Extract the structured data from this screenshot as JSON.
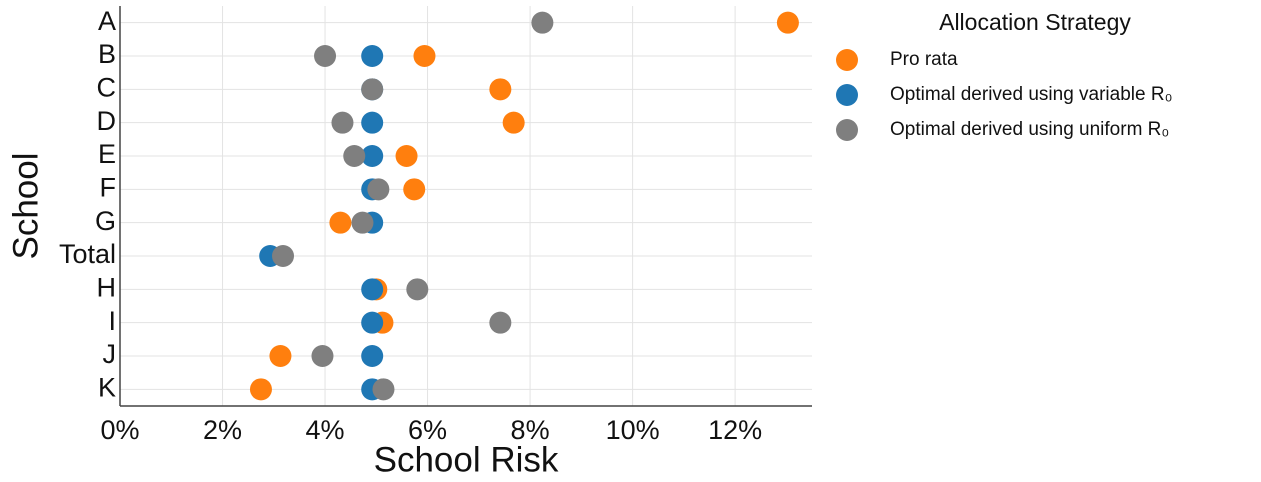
{
  "chart_data": {
    "type": "dot",
    "x_label": "School Risk",
    "y_label": "School",
    "categories": [
      "A",
      "B",
      "C",
      "D",
      "E",
      "F",
      "G",
      "Total",
      "H",
      "I",
      "J",
      "K"
    ],
    "legend_title": "Allocation Strategy",
    "series": [
      {
        "name": "Pro rata",
        "color": "#ff7f0e",
        "values": [
          13.03,
          5.94,
          7.42,
          7.68,
          5.59,
          5.74,
          4.3,
          null,
          5.0,
          5.12,
          3.13,
          2.75
        ]
      },
      {
        "name": "Optimal derived using variable R₀",
        "color": "#1f77b4",
        "values": [
          null,
          4.92,
          4.92,
          4.92,
          4.92,
          4.92,
          4.92,
          2.93,
          4.92,
          4.92,
          4.92,
          4.92
        ]
      },
      {
        "name": "Optimal derived using uniform R₀",
        "color": "#7f7f7f",
        "values": [
          8.24,
          4.0,
          4.92,
          4.34,
          4.57,
          5.04,
          4.73,
          3.18,
          5.8,
          7.42,
          3.95,
          5.14
        ]
      }
    ],
    "xlim": [
      0,
      13.5
    ],
    "xticks": [
      {
        "value": 0,
        "label": "0%"
      },
      {
        "value": 2,
        "label": "2%"
      },
      {
        "value": 4,
        "label": "4%"
      },
      {
        "value": 6,
        "label": "6%"
      },
      {
        "value": 8,
        "label": "8%"
      },
      {
        "value": 10,
        "label": "10%"
      },
      {
        "value": 12,
        "label": "12%"
      }
    ],
    "grid": true
  }
}
